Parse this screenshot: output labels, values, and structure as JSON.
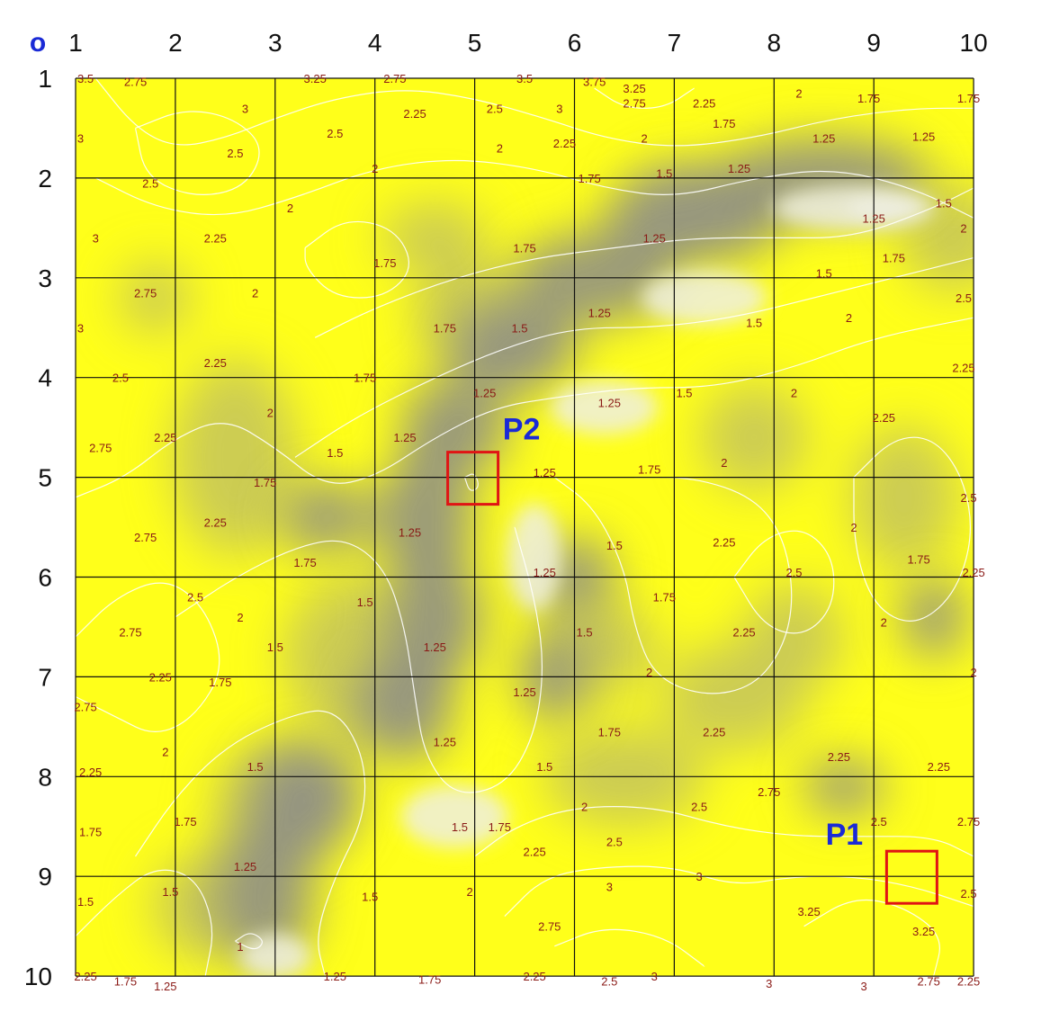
{
  "origin_label": "o",
  "x_axis_labels": [
    "1",
    "2",
    "3",
    "4",
    "5",
    "6",
    "7",
    "8",
    "9",
    "10"
  ],
  "y_axis_labels": [
    "1",
    "2",
    "3",
    "4",
    "5",
    "6",
    "7",
    "8",
    "9",
    "10"
  ],
  "colors": {
    "high": "#ffff1a",
    "mid": "#c8c85a",
    "low": "#8a8a8a",
    "valley_light": "#eeeee0",
    "contour_line": "#ffffff",
    "contour_label": "#8a1a16",
    "grid": "#111111",
    "marker_box": "#e01414",
    "marker_label": "#1a2ad6",
    "origin": "#1a2ad6"
  },
  "markers": [
    {
      "label": "P1",
      "x": 9.2,
      "y": 9.0
    },
    {
      "label": "P2",
      "x": 5.0,
      "y": 5.0
    }
  ],
  "contour_labels": [
    {
      "text": "3.5",
      "x": 1.1,
      "y": 1.0
    },
    {
      "text": "2.75",
      "x": 1.6,
      "y": 1.03
    },
    {
      "text": "3",
      "x": 2.7,
      "y": 1.3
    },
    {
      "text": "3.25",
      "x": 3.4,
      "y": 1.0
    },
    {
      "text": "2.75",
      "x": 4.2,
      "y": 1.0
    },
    {
      "text": "2.25",
      "x": 4.4,
      "y": 1.35
    },
    {
      "text": "2.5",
      "x": 3.6,
      "y": 1.55
    },
    {
      "text": "3.5",
      "x": 5.5,
      "y": 1.0
    },
    {
      "text": "2.5",
      "x": 5.2,
      "y": 1.3
    },
    {
      "text": "3",
      "x": 5.85,
      "y": 1.3
    },
    {
      "text": "3.75",
      "x": 6.2,
      "y": 1.03
    },
    {
      "text": "3.25",
      "x": 6.6,
      "y": 1.1
    },
    {
      "text": "2.75",
      "x": 6.6,
      "y": 1.25
    },
    {
      "text": "2.25",
      "x": 7.3,
      "y": 1.25
    },
    {
      "text": "1.75",
      "x": 7.5,
      "y": 1.45
    },
    {
      "text": "2",
      "x": 8.25,
      "y": 1.15
    },
    {
      "text": "1.75",
      "x": 8.95,
      "y": 1.2
    },
    {
      "text": "1.75",
      "x": 9.95,
      "y": 1.2
    },
    {
      "text": "3",
      "x": 1.05,
      "y": 1.6
    },
    {
      "text": "2.5",
      "x": 2.6,
      "y": 1.75
    },
    {
      "text": "2",
      "x": 5.25,
      "y": 1.7
    },
    {
      "text": "2.25",
      "x": 5.9,
      "y": 1.65
    },
    {
      "text": "2",
      "x": 6.7,
      "y": 1.6
    },
    {
      "text": "1.25",
      "x": 8.5,
      "y": 1.6
    },
    {
      "text": "1.25",
      "x": 9.5,
      "y": 1.58
    },
    {
      "text": "2.5",
      "x": 1.75,
      "y": 2.05
    },
    {
      "text": "2",
      "x": 4.0,
      "y": 1.9
    },
    {
      "text": "1.75",
      "x": 6.15,
      "y": 2.0
    },
    {
      "text": "1.5",
      "x": 6.9,
      "y": 1.95
    },
    {
      "text": "1.25",
      "x": 7.65,
      "y": 1.9
    },
    {
      "text": "1.5",
      "x": 9.7,
      "y": 2.25
    },
    {
      "text": "1.25",
      "x": 9.0,
      "y": 2.4
    },
    {
      "text": "2",
      "x": 9.9,
      "y": 2.5
    },
    {
      "text": "2",
      "x": 3.15,
      "y": 2.3
    },
    {
      "text": "3",
      "x": 1.2,
      "y": 2.6
    },
    {
      "text": "2.25",
      "x": 2.4,
      "y": 2.6
    },
    {
      "text": "1.75",
      "x": 5.5,
      "y": 2.7
    },
    {
      "text": "1.25",
      "x": 6.8,
      "y": 2.6
    },
    {
      "text": "1.75",
      "x": 4.1,
      "y": 2.85
    },
    {
      "text": "1.5",
      "x": 8.5,
      "y": 2.95
    },
    {
      "text": "1.75",
      "x": 9.2,
      "y": 2.8
    },
    {
      "text": "2.75",
      "x": 1.7,
      "y": 3.15
    },
    {
      "text": "2",
      "x": 2.8,
      "y": 3.15
    },
    {
      "text": "2.5",
      "x": 9.9,
      "y": 3.2
    },
    {
      "text": "3",
      "x": 1.05,
      "y": 3.5
    },
    {
      "text": "1.75",
      "x": 4.7,
      "y": 3.5
    },
    {
      "text": "1.5",
      "x": 5.45,
      "y": 3.5
    },
    {
      "text": "1.25",
      "x": 6.25,
      "y": 3.35
    },
    {
      "text": "1.5",
      "x": 7.8,
      "y": 3.45
    },
    {
      "text": "2",
      "x": 8.75,
      "y": 3.4
    },
    {
      "text": "2.5",
      "x": 1.45,
      "y": 4.0
    },
    {
      "text": "2.25",
      "x": 2.4,
      "y": 3.85
    },
    {
      "text": "1.75",
      "x": 3.9,
      "y": 4.0
    },
    {
      "text": "2.25",
      "x": 9.9,
      "y": 3.9
    },
    {
      "text": "1.25",
      "x": 5.1,
      "y": 4.15
    },
    {
      "text": "1.25",
      "x": 6.35,
      "y": 4.25
    },
    {
      "text": "1.5",
      "x": 7.1,
      "y": 4.15
    },
    {
      "text": "2",
      "x": 8.2,
      "y": 4.15
    },
    {
      "text": "2",
      "x": 2.95,
      "y": 4.35
    },
    {
      "text": "2.25",
      "x": 9.1,
      "y": 4.4
    },
    {
      "text": "2.75",
      "x": 1.25,
      "y": 4.7
    },
    {
      "text": "2.25",
      "x": 1.9,
      "y": 4.6
    },
    {
      "text": "1.25",
      "x": 4.3,
      "y": 4.6
    },
    {
      "text": "1.5",
      "x": 3.6,
      "y": 4.75
    },
    {
      "text": "1.25",
      "x": 5.7,
      "y": 4.95
    },
    {
      "text": "1.75",
      "x": 6.75,
      "y": 4.92
    },
    {
      "text": "2",
      "x": 7.5,
      "y": 4.85
    },
    {
      "text": "1.75",
      "x": 2.9,
      "y": 5.05
    },
    {
      "text": "2.5",
      "x": 9.95,
      "y": 5.2
    },
    {
      "text": "2.25",
      "x": 2.4,
      "y": 5.45
    },
    {
      "text": "2.75",
      "x": 1.7,
      "y": 5.6
    },
    {
      "text": "1.25",
      "x": 4.35,
      "y": 5.55
    },
    {
      "text": "1.5",
      "x": 6.4,
      "y": 5.68
    },
    {
      "text": "2.25",
      "x": 7.5,
      "y": 5.65
    },
    {
      "text": "2",
      "x": 8.8,
      "y": 5.5
    },
    {
      "text": "1.75",
      "x": 3.3,
      "y": 5.85
    },
    {
      "text": "1.25",
      "x": 5.7,
      "y": 5.95
    },
    {
      "text": "2.5",
      "x": 8.2,
      "y": 5.95
    },
    {
      "text": "1.75",
      "x": 9.45,
      "y": 5.82
    },
    {
      "text": "2.25",
      "x": 10.0,
      "y": 5.95
    },
    {
      "text": "2.5",
      "x": 2.2,
      "y": 6.2
    },
    {
      "text": "1.5",
      "x": 3.9,
      "y": 6.25
    },
    {
      "text": "1.75",
      "x": 6.9,
      "y": 6.2
    },
    {
      "text": "2",
      "x": 2.65,
      "y": 6.4
    },
    {
      "text": "2.75",
      "x": 1.55,
      "y": 6.55
    },
    {
      "text": "1.5",
      "x": 6.1,
      "y": 6.55
    },
    {
      "text": "2.25",
      "x": 7.7,
      "y": 6.55
    },
    {
      "text": "2",
      "x": 9.1,
      "y": 6.45
    },
    {
      "text": "1.25",
      "x": 4.6,
      "y": 6.7
    },
    {
      "text": "1.5",
      "x": 3.0,
      "y": 6.7
    },
    {
      "text": "2.25",
      "x": 1.85,
      "y": 7.0
    },
    {
      "text": "1.75",
      "x": 2.45,
      "y": 7.05
    },
    {
      "text": "2",
      "x": 6.75,
      "y": 6.95
    },
    {
      "text": "2",
      "x": 10.0,
      "y": 6.95
    },
    {
      "text": "2.75",
      "x": 1.1,
      "y": 7.3
    },
    {
      "text": "1.25",
      "x": 5.5,
      "y": 7.15
    },
    {
      "text": "1.75",
      "x": 6.35,
      "y": 7.55
    },
    {
      "text": "2.25",
      "x": 7.4,
      "y": 7.55
    },
    {
      "text": "1.25",
      "x": 4.7,
      "y": 7.65
    },
    {
      "text": "2",
      "x": 1.9,
      "y": 7.75
    },
    {
      "text": "2.25",
      "x": 8.65,
      "y": 7.8
    },
    {
      "text": "2.25",
      "x": 9.65,
      "y": 7.9
    },
    {
      "text": "2.25",
      "x": 1.15,
      "y": 7.95
    },
    {
      "text": "1.5",
      "x": 2.8,
      "y": 7.9
    },
    {
      "text": "1.5",
      "x": 5.7,
      "y": 7.9
    },
    {
      "text": "2.75",
      "x": 7.95,
      "y": 8.15
    },
    {
      "text": "2",
      "x": 6.1,
      "y": 8.3
    },
    {
      "text": "2.5",
      "x": 7.25,
      "y": 8.3
    },
    {
      "text": "1.75",
      "x": 2.1,
      "y": 8.45
    },
    {
      "text": "2.5",
      "x": 9.05,
      "y": 8.45
    },
    {
      "text": "2.75",
      "x": 9.95,
      "y": 8.45
    },
    {
      "text": "1.75",
      "x": 1.15,
      "y": 8.55
    },
    {
      "text": "1.5",
      "x": 4.85,
      "y": 8.5
    },
    {
      "text": "1.75",
      "x": 5.25,
      "y": 8.5
    },
    {
      "text": "2.5",
      "x": 6.4,
      "y": 8.65
    },
    {
      "text": "2.25",
      "x": 5.6,
      "y": 8.75
    },
    {
      "text": "1.25",
      "x": 2.7,
      "y": 8.9
    },
    {
      "text": "3",
      "x": 7.25,
      "y": 9.0
    },
    {
      "text": "3",
      "x": 6.35,
      "y": 9.1
    },
    {
      "text": "1.5",
      "x": 1.95,
      "y": 9.15
    },
    {
      "text": "2",
      "x": 4.95,
      "y": 9.15
    },
    {
      "text": "1.5",
      "x": 3.95,
      "y": 9.2
    },
    {
      "text": "1.5",
      "x": 1.1,
      "y": 9.25
    },
    {
      "text": "2.5",
      "x": 9.95,
      "y": 9.17
    },
    {
      "text": "3.25",
      "x": 8.35,
      "y": 9.35
    },
    {
      "text": "2.75",
      "x": 5.75,
      "y": 9.5
    },
    {
      "text": "3.25",
      "x": 9.5,
      "y": 9.55
    },
    {
      "text": "1",
      "x": 2.65,
      "y": 9.7
    },
    {
      "text": "2.25",
      "x": 1.1,
      "y": 10.0
    },
    {
      "text": "1.75",
      "x": 1.5,
      "y": 10.05
    },
    {
      "text": "1.25",
      "x": 1.9,
      "y": 10.1
    },
    {
      "text": "1.25",
      "x": 3.6,
      "y": 10.0
    },
    {
      "text": "1.75",
      "x": 4.55,
      "y": 10.03
    },
    {
      "text": "2.25",
      "x": 5.6,
      "y": 10.0
    },
    {
      "text": "2.5",
      "x": 6.35,
      "y": 10.05
    },
    {
      "text": "3",
      "x": 6.8,
      "y": 10.0
    },
    {
      "text": "3",
      "x": 7.95,
      "y": 10.07
    },
    {
      "text": "3",
      "x": 8.9,
      "y": 10.1
    },
    {
      "text": "2.75",
      "x": 9.55,
      "y": 10.05
    },
    {
      "text": "2.25",
      "x": 9.95,
      "y": 10.05
    }
  ]
}
